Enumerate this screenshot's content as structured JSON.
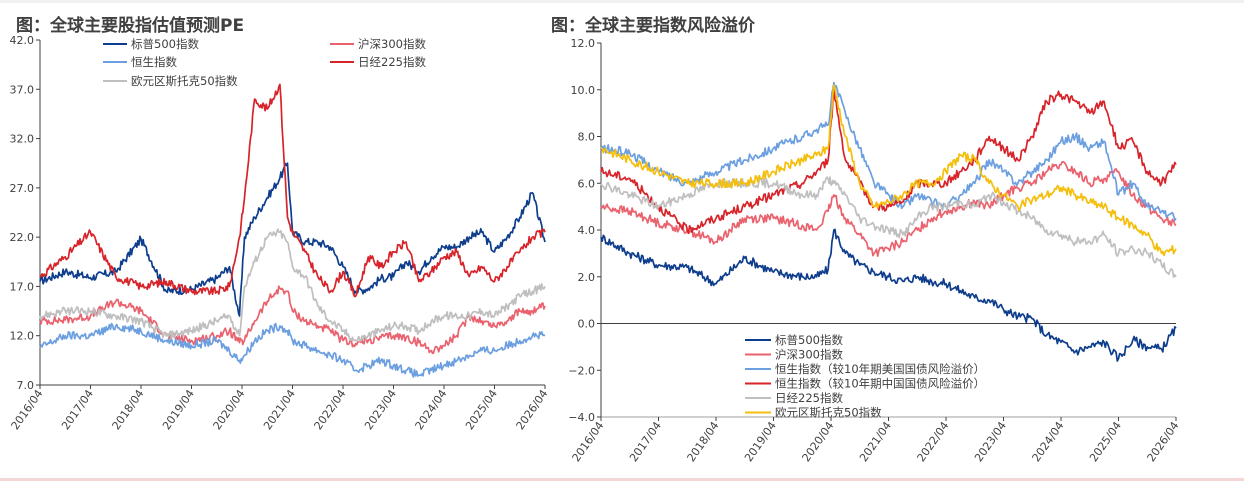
{
  "left_title": "图：全球主要股指估值预测PE",
  "right_title": "图：全球主要指数风险溢价",
  "chart_data": [
    {
      "type": "line",
      "title": "图：全球主要股指估值预测PE",
      "xlabel": "",
      "ylabel": "",
      "ylim": [
        7.0,
        42.0
      ],
      "yticks": [
        "42.0",
        "37.0",
        "32.0",
        "27.0",
        "22.0",
        "17.0",
        "12.0",
        "7.0"
      ],
      "yticks_values": [
        42,
        37,
        32,
        27,
        22,
        17,
        12,
        7
      ],
      "xlim": [
        2016.25,
        2026.25
      ],
      "x_tick_labels": [
        "2016/04",
        "2017/04",
        "2018/04",
        "2019/04",
        "2020/04",
        "2021/04",
        "2022/04",
        "2023/04",
        "2024/04",
        "2025/04",
        "2026/04"
      ],
      "x": [
        2016.25,
        2016.75,
        2017.25,
        2017.75,
        2018.25,
        2018.75,
        2019.25,
        2019.75,
        2020.0,
        2020.2,
        2020.3,
        2020.5,
        2020.75,
        2021.0,
        2021.15,
        2021.25,
        2021.5,
        2021.75,
        2022.0,
        2022.25,
        2022.5,
        2022.75,
        2023.0,
        2023.25,
        2023.5,
        2023.75,
        2024.0,
        2024.25,
        2024.5,
        2024.75,
        2025.0,
        2025.25,
        2025.5,
        2025.75,
        2026.0,
        2026.25
      ],
      "series": [
        {
          "name": "标普500指数",
          "color": "#0d3d8c",
          "values": [
            17.5,
            18.5,
            17.9,
            18.5,
            21.8,
            16.5,
            16.7,
            17.8,
            19.0,
            14.0,
            22.0,
            24.0,
            26.0,
            28.0,
            29.5,
            22.5,
            21.5,
            21.5,
            21.0,
            19.0,
            16.5,
            16.8,
            17.8,
            18.0,
            19.5,
            18.5,
            20.0,
            21.0,
            21.0,
            22.0,
            22.5,
            20.5,
            22.0,
            24.0,
            26.5,
            21.5
          ]
        },
        {
          "name": "沪深300指数",
          "color": "#e9626e",
          "values": [
            13.5,
            13.6,
            14.0,
            15.5,
            14.5,
            12.0,
            11.5,
            12.0,
            12.5,
            11.3,
            11.5,
            13.5,
            15.5,
            16.8,
            16.5,
            14.5,
            13.5,
            13.0,
            12.5,
            11.5,
            11.2,
            11.5,
            11.8,
            12.0,
            11.8,
            11.3,
            10.5,
            11.0,
            12.0,
            14.0,
            13.5,
            13.0,
            13.5,
            14.5,
            14.5,
            15.0
          ]
        },
        {
          "name": "日经225指数",
          "color": "#d7232a",
          "values": [
            18.0,
            20.0,
            22.5,
            18.0,
            17.0,
            17.5,
            16.5,
            16.5,
            17.0,
            22.0,
            26.0,
            36.0,
            35.0,
            37.5,
            24.0,
            22.5,
            20.5,
            18.0,
            16.5,
            18.5,
            16.0,
            20.0,
            19.0,
            20.5,
            21.5,
            17.5,
            18.5,
            20.0,
            20.5,
            18.0,
            19.0,
            17.5,
            19.0,
            20.5,
            22.0,
            22.5
          ]
        },
        {
          "name": "恒生指数",
          "color": "#6c9fe0",
          "values": [
            10.8,
            12.0,
            12.0,
            13.0,
            12.5,
            11.5,
            11.0,
            11.5,
            10.5,
            9.5,
            10.0,
            11.5,
            12.5,
            13.0,
            12.5,
            11.5,
            11.0,
            10.5,
            10.0,
            9.5,
            8.5,
            9.0,
            9.5,
            9.0,
            8.5,
            8.0,
            8.5,
            9.0,
            9.5,
            10.0,
            10.5,
            10.5,
            11.0,
            11.5,
            12.0,
            12.0
          ]
        },
        {
          "name": "欧元区斯托克50指数",
          "color": "#bfbfbf",
          "values": [
            14.0,
            14.5,
            14.5,
            14.0,
            13.5,
            12.0,
            12.5,
            13.5,
            14.0,
            12.0,
            17.0,
            19.5,
            22.0,
            22.5,
            21.5,
            19.0,
            18.0,
            15.0,
            13.5,
            12.5,
            11.5,
            12.0,
            12.5,
            13.0,
            13.0,
            12.5,
            13.5,
            14.0,
            14.0,
            14.0,
            14.5,
            14.0,
            15.0,
            16.0,
            16.5,
            17.0
          ]
        }
      ]
    },
    {
      "type": "line",
      "title": "图：全球主要指数风险溢价",
      "xlabel": "",
      "ylabel": "",
      "ylim": [
        -4.0,
        12.0
      ],
      "yticks": [
        "12.0",
        "10.0",
        "8.0",
        "6.0",
        "4.0",
        "2.0",
        "0.0",
        "−2.0",
        "−4.0"
      ],
      "yticks_values": [
        12,
        10,
        8,
        6,
        4,
        2,
        0,
        -2,
        -4
      ],
      "xlim": [
        2016.25,
        2026.25
      ],
      "x_tick_labels": [
        "2016/04",
        "2017/04",
        "2018/04",
        "2019/04",
        "2020/04",
        "2021/04",
        "2022/04",
        "2023/04",
        "2024/04",
        "2025/04",
        "2026/04"
      ],
      "x": [
        2016.25,
        2016.75,
        2017.25,
        2017.75,
        2018.25,
        2018.75,
        2019.25,
        2019.75,
        2020.0,
        2020.2,
        2020.3,
        2020.5,
        2020.75,
        2021.0,
        2021.25,
        2021.5,
        2021.75,
        2022.0,
        2022.25,
        2022.5,
        2022.75,
        2023.0,
        2023.25,
        2023.5,
        2023.75,
        2024.0,
        2024.25,
        2024.5,
        2024.75,
        2025.0,
        2025.25,
        2025.5,
        2025.75,
        2026.0,
        2026.25
      ],
      "series": [
        {
          "name": "标普500指数",
          "color": "#0d3d8c",
          "values": [
            3.7,
            3.0,
            2.5,
            2.4,
            1.7,
            2.8,
            2.2,
            2.0,
            2.0,
            2.3,
            4.0,
            3.0,
            2.5,
            2.2,
            2.0,
            1.8,
            2.0,
            1.8,
            1.7,
            1.4,
            1.1,
            1.0,
            0.6,
            0.3,
            0.2,
            -0.5,
            -0.8,
            -1.2,
            -1.0,
            -0.8,
            -1.5,
            -0.7,
            -1.0,
            -1.1,
            -0.2
          ]
        },
        {
          "name": "沪深300指数",
          "color": "#e9626e",
          "values": [
            5.0,
            4.8,
            4.3,
            4.0,
            3.5,
            4.5,
            4.5,
            4.2,
            4.0,
            4.8,
            5.5,
            4.5,
            3.8,
            3.0,
            3.2,
            3.5,
            4.0,
            4.5,
            4.8,
            5.0,
            5.2,
            5.0,
            5.5,
            5.8,
            6.0,
            6.5,
            6.8,
            6.5,
            6.0,
            6.2,
            6.5,
            5.5,
            5.0,
            4.5,
            4.2
          ]
        },
        {
          "name": "恒生指数（较10年期美国国债风险溢价）",
          "color": "#6c9fe0",
          "values": [
            7.5,
            7.3,
            6.5,
            6.0,
            6.5,
            7.0,
            7.5,
            8.0,
            8.3,
            8.5,
            10.3,
            9.0,
            7.5,
            6.0,
            5.5,
            5.0,
            5.5,
            5.2,
            5.0,
            5.5,
            6.0,
            7.0,
            6.5,
            6.0,
            6.5,
            7.0,
            7.8,
            8.0,
            7.5,
            7.8,
            5.5,
            6.0,
            5.0,
            4.8,
            4.5
          ]
        },
        {
          "name": "恒生指数（较10年期中国国债风险溢价）",
          "color": "#d7232a",
          "values": [
            6.5,
            6.2,
            5.0,
            4.0,
            4.5,
            5.0,
            5.5,
            6.0,
            6.5,
            7.0,
            10.0,
            7.0,
            6.0,
            5.0,
            5.0,
            5.2,
            6.0,
            6.0,
            6.0,
            6.5,
            7.0,
            8.0,
            7.5,
            7.0,
            8.0,
            9.5,
            9.8,
            9.5,
            9.0,
            9.5,
            7.5,
            7.8,
            6.5,
            6.0,
            6.8
          ]
        },
        {
          "name": "日经225指数",
          "color": "#bfbfbf",
          "values": [
            6.0,
            5.5,
            5.0,
            5.5,
            6.0,
            6.0,
            6.0,
            5.5,
            5.5,
            6.2,
            6.0,
            5.5,
            4.5,
            4.2,
            4.0,
            3.8,
            4.5,
            5.0,
            5.0,
            5.2,
            5.0,
            5.5,
            5.2,
            4.8,
            4.5,
            4.0,
            3.8,
            3.5,
            3.5,
            3.8,
            3.0,
            3.2,
            3.0,
            2.5,
            2.0
          ]
        },
        {
          "name": "欧元区斯托克50指数",
          "color": "#f5be0b",
          "values": [
            7.5,
            7.0,
            6.5,
            6.0,
            6.0,
            6.0,
            6.5,
            7.0,
            7.2,
            7.5,
            10.2,
            8.0,
            6.0,
            5.0,
            5.2,
            5.5,
            6.0,
            6.0,
            6.5,
            7.2,
            7.0,
            6.0,
            5.5,
            5.0,
            5.3,
            5.5,
            5.8,
            5.5,
            5.2,
            5.0,
            4.5,
            4.2,
            3.8,
            3.0,
            3.2
          ]
        }
      ]
    }
  ]
}
